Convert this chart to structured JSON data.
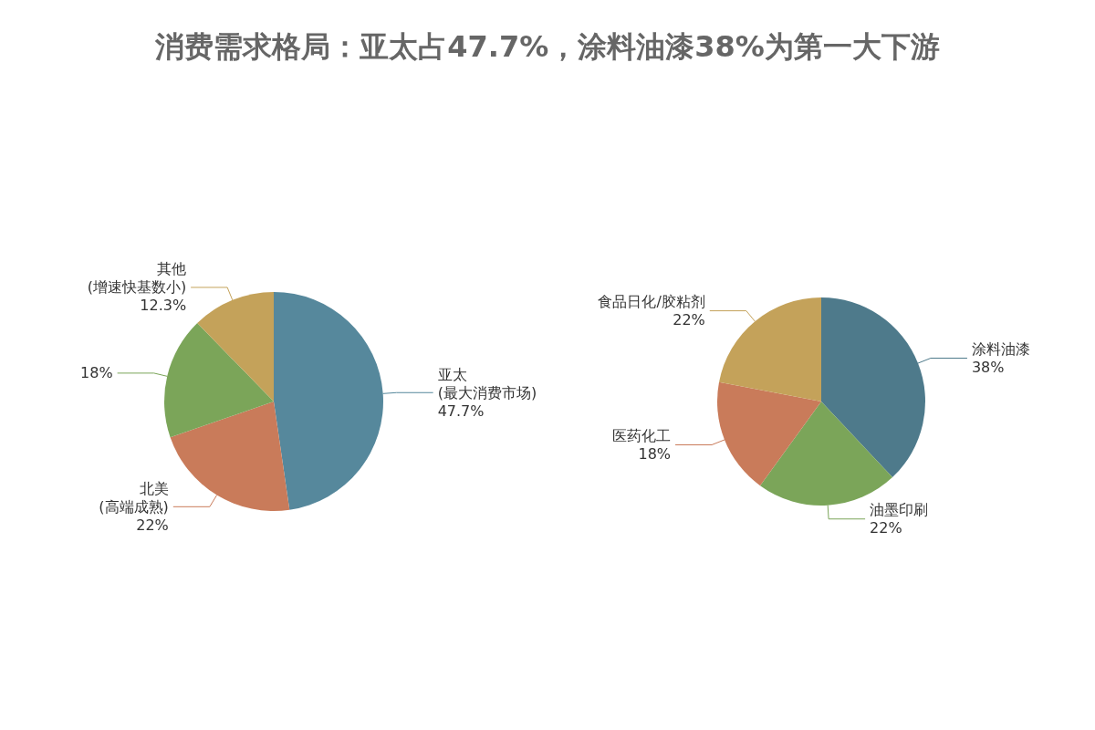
{
  "chart_data": [
    {
      "type": "pie",
      "title": "消费需求格局：亚太占47.7%，涂料油漆38%为第一大下游",
      "categories": [
        "亚太\n(最大消费市场)",
        "北美\n(高端成熟)",
        null,
        "其他\n(增速快基数小)"
      ],
      "values": [
        47.7,
        22,
        18,
        12.3
      ],
      "value_labels": [
        "47.7%",
        "22%",
        "18%",
        "12.3%"
      ],
      "colors": [
        "#56889c",
        "#c97b5a",
        "#7ba559",
        "#c4a25a"
      ],
      "legend": false
    },
    {
      "type": "pie",
      "categories": [
        "涂料油漆",
        "油墨印刷",
        "医药化工",
        "食品日化/胶粘剂"
      ],
      "values": [
        38,
        22,
        18,
        22
      ],
      "value_labels": [
        "38%",
        "22%",
        "18%",
        "22%"
      ],
      "colors": [
        "#4e7a8b",
        "#7ba559",
        "#c97b5a",
        "#c4a25a"
      ],
      "legend": false
    }
  ]
}
